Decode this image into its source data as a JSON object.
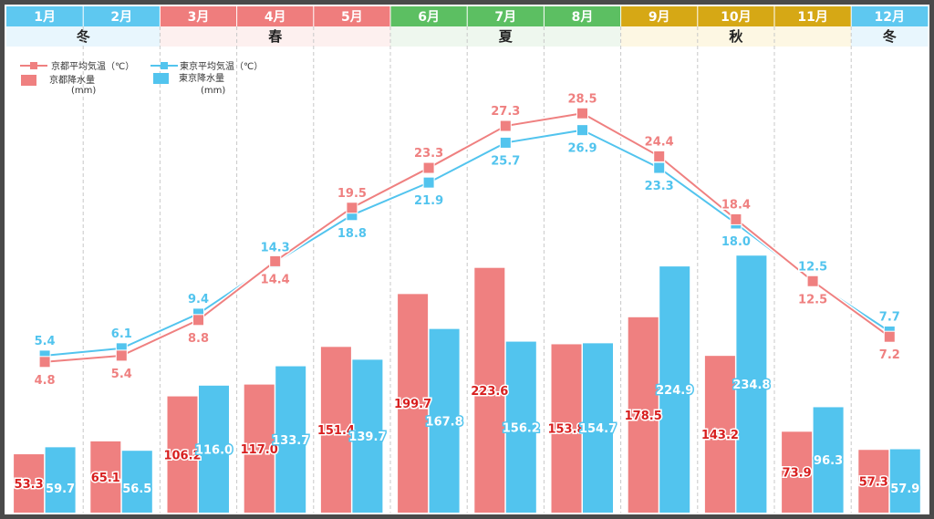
{
  "chart_data": {
    "type": "bar+line",
    "months": [
      "1月",
      "2月",
      "3月",
      "4月",
      "5月",
      "6月",
      "7月",
      "8月",
      "9月",
      "10月",
      "11月",
      "12月"
    ],
    "seasons": [
      {
        "label": "冬",
        "from": 0,
        "to": 1,
        "color": "#5ec8f0",
        "band": "#e8f6fd"
      },
      {
        "label": "春",
        "from": 2,
        "to": 4,
        "color": "#ef7d7d",
        "band": "#fdf0ef"
      },
      {
        "label": "夏",
        "from": 5,
        "to": 7,
        "color": "#5cbf62",
        "band": "#eef7ee"
      },
      {
        "label": "秋",
        "from": 8,
        "to": 10,
        "color": "#d6a815",
        "band": "#fdf7e3"
      },
      {
        "label": "冬",
        "from": 11,
        "to": 11,
        "color": "#5ec8f0",
        "band": "#e8f6fd"
      }
    ],
    "legend": {
      "kyoto_temp": "京都平均気温（℃）",
      "tokyo_temp": "東京平均気温（℃）",
      "kyoto_rain": "京都降水量",
      "tokyo_rain": "東京降水量",
      "rain_unit": "(mm)"
    },
    "series": [
      {
        "name": "京都平均気温",
        "kind": "line",
        "color": "#ef8080",
        "values": [
          4.8,
          5.4,
          8.8,
          14.4,
          19.5,
          23.3,
          27.3,
          28.5,
          24.4,
          18.4,
          12.5,
          7.2
        ]
      },
      {
        "name": "東京平均気温",
        "kind": "line",
        "color": "#52c4ee",
        "values": [
          5.4,
          6.1,
          9.4,
          14.3,
          18.8,
          21.9,
          25.7,
          26.9,
          23.3,
          18.0,
          12.5,
          7.7
        ]
      },
      {
        "name": "京都降水量",
        "kind": "bar",
        "color": "#ef8080",
        "values": [
          53.3,
          65.1,
          106.2,
          117.0,
          151.4,
          199.7,
          223.6,
          153.8,
          178.5,
          143.2,
          73.9,
          57.3
        ]
      },
      {
        "name": "東京降水量",
        "kind": "bar",
        "color": "#52c4ee",
        "values": [
          59.7,
          56.5,
          116.0,
          133.7,
          139.7,
          167.8,
          156.2,
          154.7,
          224.9,
          234.8,
          96.3,
          57.9
        ]
      }
    ],
    "temp_labels_kyoto": [
      "4.8",
      "5.4",
      "8.8",
      "14.4",
      "19.5",
      "23.3",
      "27.3",
      "28.5",
      "24.4",
      "18.4",
      "12.5",
      "7.2"
    ],
    "temp_labels_tokyo": [
      "5.4",
      "6.1",
      "9.4",
      "14.3",
      "18.8",
      "21.9",
      "25.7",
      "26.9",
      "23.3",
      "18.0",
      "12.5",
      "7.7"
    ],
    "rain_labels_kyoto": [
      "53.3",
      "65.1",
      "106.2",
      "117.0",
      "151.4",
      "199.7",
      "223.6",
      "153.8",
      "178.5",
      "143.2",
      "73.9",
      "57.3"
    ],
    "rain_labels_tokyo": [
      "59.7",
      "56.5",
      "116.0",
      "133.7",
      "139.7",
      "167.8",
      "156.2",
      "154.7",
      "224.9",
      "234.8",
      "96.3",
      "57.9"
    ],
    "temp_range": [
      0,
      32
    ],
    "rain_range": [
      0,
      300
    ],
    "grid": "vertical dashed"
  }
}
